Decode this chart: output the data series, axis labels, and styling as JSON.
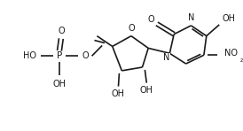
{
  "bg_color": "#ffffff",
  "line_color": "#1a1a1a",
  "lw": 1.2,
  "fs": 7.0,
  "xlim": [
    0,
    274
  ],
  "ylim": [
    0,
    148
  ]
}
